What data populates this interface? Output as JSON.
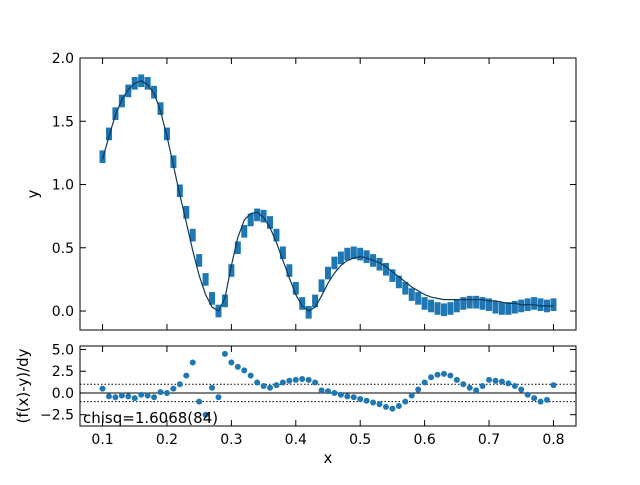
{
  "chart_data": [
    {
      "type": "scatter",
      "panel": "main",
      "xlabel": "x",
      "ylabel": "y",
      "xlim": [
        0.065,
        0.835
      ],
      "ylim": [
        -0.15,
        2.0
      ],
      "xticks": [
        0.1,
        0.2,
        0.3,
        0.4,
        0.5,
        0.6,
        0.7,
        0.8
      ],
      "yticks": [
        0.0,
        0.5,
        1.0,
        1.5,
        2.0
      ],
      "ytick_labels": [
        "0.0",
        "0.5",
        "1.0",
        "1.5",
        "2.0"
      ],
      "grid": false,
      "colors": {
        "data": "#1f77b4",
        "fit": "#0d3a5c",
        "axes": "#000000"
      },
      "series": [
        {
          "kind": "data-with-errorbars",
          "x": [
            0.1,
            0.11,
            0.12,
            0.13,
            0.14,
            0.15,
            0.16,
            0.17,
            0.18,
            0.19,
            0.2,
            0.21,
            0.22,
            0.23,
            0.24,
            0.25,
            0.26,
            0.27,
            0.28,
            0.29,
            0.3,
            0.31,
            0.32,
            0.33,
            0.34,
            0.35,
            0.36,
            0.37,
            0.38,
            0.39,
            0.4,
            0.41,
            0.42,
            0.43,
            0.44,
            0.45,
            0.46,
            0.47,
            0.48,
            0.49,
            0.5,
            0.51,
            0.52,
            0.53,
            0.54,
            0.55,
            0.56,
            0.57,
            0.58,
            0.59,
            0.6,
            0.61,
            0.62,
            0.63,
            0.64,
            0.65,
            0.66,
            0.67,
            0.68,
            0.69,
            0.7,
            0.71,
            0.72,
            0.73,
            0.74,
            0.75,
            0.76,
            0.77,
            0.78,
            0.79,
            0.8
          ],
          "y": [
            1.22,
            1.4,
            1.56,
            1.66,
            1.74,
            1.8,
            1.82,
            1.8,
            1.73,
            1.6,
            1.4,
            1.18,
            0.95,
            0.78,
            0.6,
            0.4,
            0.25,
            0.1,
            0.0,
            0.08,
            0.32,
            0.5,
            0.63,
            0.72,
            0.76,
            0.75,
            0.7,
            0.6,
            0.46,
            0.32,
            0.18,
            0.06,
            -0.01,
            0.08,
            0.2,
            0.3,
            0.38,
            0.42,
            0.45,
            0.46,
            0.45,
            0.43,
            0.4,
            0.37,
            0.33,
            0.28,
            0.23,
            0.18,
            0.13,
            0.1,
            0.06,
            0.04,
            0.02,
            0.01,
            0.02,
            0.04,
            0.06,
            0.07,
            0.07,
            0.06,
            0.05,
            0.03,
            0.02,
            0.02,
            0.03,
            0.04,
            0.05,
            0.06,
            0.05,
            0.04,
            0.05
          ],
          "yerr": 0.05
        },
        {
          "kind": "fit-line",
          "x": [
            0.1,
            0.11,
            0.12,
            0.13,
            0.14,
            0.15,
            0.16,
            0.17,
            0.18,
            0.19,
            0.2,
            0.21,
            0.22,
            0.23,
            0.24,
            0.25,
            0.26,
            0.27,
            0.28,
            0.29,
            0.3,
            0.31,
            0.32,
            0.33,
            0.34,
            0.35,
            0.36,
            0.37,
            0.38,
            0.39,
            0.4,
            0.41,
            0.42,
            0.43,
            0.44,
            0.45,
            0.46,
            0.47,
            0.48,
            0.49,
            0.5,
            0.51,
            0.52,
            0.53,
            0.54,
            0.55,
            0.56,
            0.57,
            0.58,
            0.59,
            0.6,
            0.61,
            0.62,
            0.63,
            0.64,
            0.65,
            0.66,
            0.67,
            0.68,
            0.69,
            0.7,
            0.71,
            0.72,
            0.73,
            0.74,
            0.75,
            0.76,
            0.77,
            0.78,
            0.79,
            0.8
          ],
          "y": [
            1.2,
            1.38,
            1.55,
            1.67,
            1.75,
            1.8,
            1.82,
            1.79,
            1.72,
            1.58,
            1.38,
            1.15,
            0.92,
            0.7,
            0.48,
            0.28,
            0.13,
            0.03,
            0.0,
            0.1,
            0.36,
            0.58,
            0.72,
            0.77,
            0.78,
            0.74,
            0.66,
            0.54,
            0.4,
            0.26,
            0.13,
            0.04,
            0.0,
            0.03,
            0.12,
            0.22,
            0.3,
            0.36,
            0.4,
            0.42,
            0.43,
            0.42,
            0.4,
            0.38,
            0.35,
            0.31,
            0.27,
            0.23,
            0.19,
            0.16,
            0.13,
            0.11,
            0.1,
            0.09,
            0.09,
            0.09,
            0.09,
            0.09,
            0.09,
            0.09,
            0.08,
            0.08,
            0.07,
            0.06,
            0.06,
            0.05,
            0.05,
            0.05,
            0.04,
            0.04,
            0.04
          ]
        }
      ]
    },
    {
      "type": "scatter",
      "panel": "residuals",
      "xlabel": "x",
      "ylabel": "(f(x)-y)/dy",
      "xlim": [
        0.065,
        0.835
      ],
      "ylim": [
        -3.8,
        5.4
      ],
      "xticks": [
        0.1,
        0.2,
        0.3,
        0.4,
        0.5,
        0.6,
        0.7,
        0.8
      ],
      "xtick_labels": [
        "0.1",
        "0.2",
        "0.3",
        "0.4",
        "0.5",
        "0.6",
        "0.7",
        "0.8"
      ],
      "yticks": [
        -2.5,
        0.0,
        2.5,
        5.0
      ],
      "ytick_labels": [
        "−2.5",
        "0.0",
        "2.5",
        "5.0"
      ],
      "reference_lines": [
        {
          "y": 0,
          "style": "solid"
        },
        {
          "y": 1,
          "style": "dotted"
        },
        {
          "y": -1,
          "style": "dotted"
        }
      ],
      "annotation": "chisq=1.6068(84)",
      "colors": {
        "points": "#1f77b4"
      },
      "series": [
        {
          "x": [
            0.1,
            0.11,
            0.12,
            0.13,
            0.14,
            0.15,
            0.16,
            0.17,
            0.18,
            0.19,
            0.2,
            0.21,
            0.22,
            0.23,
            0.24,
            0.25,
            0.26,
            0.27,
            0.28,
            0.29,
            0.3,
            0.31,
            0.32,
            0.33,
            0.34,
            0.35,
            0.36,
            0.37,
            0.38,
            0.39,
            0.4,
            0.41,
            0.42,
            0.43,
            0.44,
            0.45,
            0.46,
            0.47,
            0.48,
            0.49,
            0.5,
            0.51,
            0.52,
            0.53,
            0.54,
            0.55,
            0.56,
            0.57,
            0.58,
            0.59,
            0.6,
            0.61,
            0.62,
            0.63,
            0.64,
            0.65,
            0.66,
            0.67,
            0.68,
            0.69,
            0.7,
            0.71,
            0.72,
            0.73,
            0.74,
            0.75,
            0.76,
            0.77,
            0.78,
            0.79,
            0.8
          ],
          "y": [
            0.5,
            -0.4,
            -0.5,
            -0.3,
            -0.4,
            -0.6,
            -0.2,
            -0.3,
            -0.5,
            0.1,
            0.0,
            0.5,
            1.0,
            2.0,
            3.5,
            -1.0,
            -2.5,
            0.6,
            -0.5,
            4.5,
            3.5,
            3.0,
            2.6,
            2.0,
            1.2,
            0.8,
            0.6,
            0.9,
            1.2,
            1.4,
            1.5,
            1.6,
            1.5,
            1.2,
            0.3,
            0.2,
            0.0,
            -0.2,
            -0.4,
            -0.5,
            -0.7,
            -0.9,
            -1.1,
            -1.3,
            -1.6,
            -1.8,
            -1.5,
            -1.0,
            -0.3,
            0.4,
            1.2,
            1.8,
            2.1,
            2.2,
            2.0,
            1.5,
            1.0,
            0.6,
            0.3,
            0.8,
            1.5,
            1.4,
            1.3,
            1.1,
            0.8,
            0.4,
            -0.2,
            -0.6,
            -1.0,
            -0.8,
            0.9
          ]
        }
      ]
    }
  ]
}
